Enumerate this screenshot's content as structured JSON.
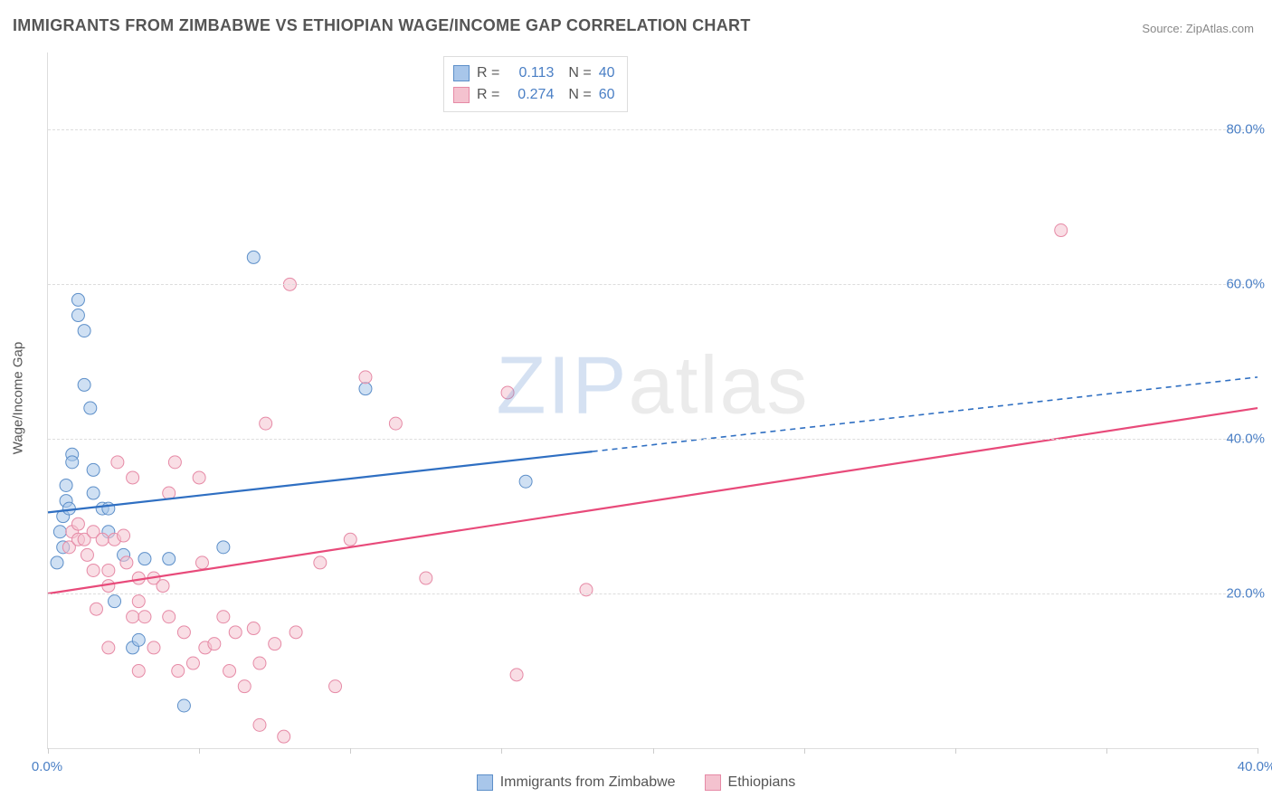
{
  "title": "IMMIGRANTS FROM ZIMBABWE VS ETHIOPIAN WAGE/INCOME GAP CORRELATION CHART",
  "source_label": "Source:",
  "source_name": "ZipAtlas.com",
  "ylabel": "Wage/Income Gap",
  "watermark": {
    "part1": "ZIP",
    "part2": "atlas"
  },
  "chart": {
    "type": "scatter",
    "background_color": "#ffffff",
    "grid_color": "#dddddd",
    "axis_color": "#dddddd",
    "tick_font_color": "#4a7fc5",
    "tick_fontsize": 15,
    "label_font_color": "#555555",
    "label_fontsize": 15,
    "xlim": [
      0,
      40
    ],
    "ylim": [
      0,
      90
    ],
    "xticks": [
      0,
      5,
      10,
      15,
      20,
      25,
      30,
      35,
      40
    ],
    "xtick_labels": [
      "0.0%",
      "",
      "",
      "",
      "",
      "",
      "",
      "",
      "40.0%"
    ],
    "yticks": [
      20,
      40,
      60,
      80
    ],
    "ytick_labels": [
      "20.0%",
      "40.0%",
      "60.0%",
      "80.0%"
    ],
    "marker_radius": 7,
    "marker_opacity": 0.55,
    "series": [
      {
        "name": "Immigrants from Zimbabwe",
        "color_fill": "#a8c6ea",
        "color_stroke": "#5d8fc9",
        "line_color": "#2f6fc2",
        "r": 0.113,
        "n": 40,
        "trend": {
          "x1": 0,
          "y1": 30.5,
          "x2": 40,
          "y2": 48,
          "solid_until_x": 18
        },
        "points": [
          [
            0.3,
            24
          ],
          [
            0.4,
            28
          ],
          [
            0.5,
            30
          ],
          [
            0.5,
            26
          ],
          [
            0.6,
            32
          ],
          [
            0.6,
            34
          ],
          [
            0.7,
            31
          ],
          [
            0.8,
            38
          ],
          [
            0.8,
            37
          ],
          [
            1.0,
            58
          ],
          [
            1.0,
            56
          ],
          [
            1.2,
            54
          ],
          [
            1.2,
            47
          ],
          [
            1.4,
            44
          ],
          [
            1.5,
            36
          ],
          [
            1.5,
            33
          ],
          [
            1.8,
            31
          ],
          [
            2.0,
            28
          ],
          [
            2.0,
            31
          ],
          [
            2.2,
            19
          ],
          [
            2.5,
            25
          ],
          [
            2.8,
            13
          ],
          [
            3.0,
            14
          ],
          [
            3.2,
            24.5
          ],
          [
            4.0,
            24.5
          ],
          [
            4.5,
            5.5
          ],
          [
            5.8,
            26
          ],
          [
            6.8,
            63.5
          ],
          [
            10.5,
            46.5
          ],
          [
            15.8,
            34.5
          ]
        ]
      },
      {
        "name": "Ethiopians",
        "color_fill": "#f4c2cf",
        "color_stroke": "#e68aa6",
        "line_color": "#e84a7a",
        "r": 0.274,
        "n": 60,
        "trend": {
          "x1": 0,
          "y1": 20,
          "x2": 40,
          "y2": 44,
          "solid_until_x": 40
        },
        "points": [
          [
            0.7,
            26
          ],
          [
            0.8,
            28
          ],
          [
            1.0,
            27
          ],
          [
            1.0,
            29
          ],
          [
            1.2,
            27
          ],
          [
            1.3,
            25
          ],
          [
            1.5,
            28
          ],
          [
            1.5,
            23
          ],
          [
            1.6,
            18
          ],
          [
            1.8,
            27
          ],
          [
            2.0,
            23
          ],
          [
            2.0,
            21
          ],
          [
            2.0,
            13
          ],
          [
            2.2,
            27
          ],
          [
            2.3,
            37
          ],
          [
            2.5,
            27.5
          ],
          [
            2.6,
            24
          ],
          [
            2.8,
            35
          ],
          [
            2.8,
            17
          ],
          [
            3.0,
            22
          ],
          [
            3.0,
            19
          ],
          [
            3.0,
            10
          ],
          [
            3.2,
            17
          ],
          [
            3.5,
            22
          ],
          [
            3.5,
            13
          ],
          [
            3.8,
            21
          ],
          [
            4.0,
            17
          ],
          [
            4.0,
            33
          ],
          [
            4.2,
            37
          ],
          [
            4.3,
            10
          ],
          [
            4.5,
            15
          ],
          [
            4.8,
            11
          ],
          [
            5.0,
            35
          ],
          [
            5.1,
            24
          ],
          [
            5.2,
            13
          ],
          [
            5.5,
            13.5
          ],
          [
            5.8,
            17
          ],
          [
            6.0,
            10
          ],
          [
            6.2,
            15
          ],
          [
            6.5,
            8
          ],
          [
            6.8,
            15.5
          ],
          [
            7.0,
            11
          ],
          [
            7.0,
            3
          ],
          [
            7.2,
            42
          ],
          [
            7.5,
            13.5
          ],
          [
            7.8,
            1.5
          ],
          [
            8.0,
            60
          ],
          [
            8.2,
            15
          ],
          [
            9.0,
            24
          ],
          [
            9.5,
            8
          ],
          [
            10.0,
            27
          ],
          [
            10.5,
            48
          ],
          [
            11.5,
            42
          ],
          [
            12.5,
            22
          ],
          [
            15.2,
            46
          ],
          [
            15.5,
            9.5
          ],
          [
            17.8,
            20.5
          ],
          [
            33.5,
            67
          ]
        ]
      }
    ]
  },
  "legend_bottom": [
    {
      "label": "Immigrants from Zimbabwe",
      "fill": "#a8c6ea",
      "stroke": "#5d8fc9"
    },
    {
      "label": "Ethiopians",
      "fill": "#f4c2cf",
      "stroke": "#e68aa6"
    }
  ]
}
